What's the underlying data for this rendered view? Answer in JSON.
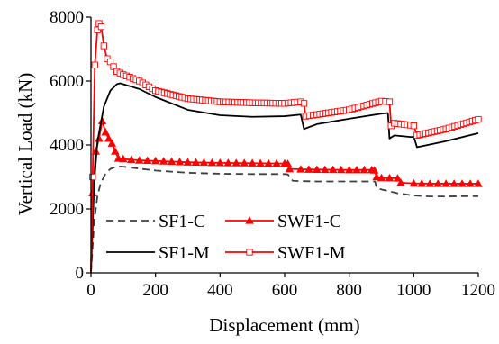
{
  "chart_data": {
    "type": "line",
    "title": "",
    "xlabel": "Displacement (mm)",
    "ylabel": "Vertical Load (kN)",
    "xlim": [
      0,
      1200
    ],
    "ylim": [
      0,
      8000
    ],
    "xticks": [
      0,
      200,
      400,
      600,
      800,
      1000,
      1200
    ],
    "yticks": [
      0,
      2000,
      4000,
      6000,
      8000
    ],
    "grid": false,
    "legend_position": "bottom-left",
    "series": [
      {
        "name": "SF1-C",
        "color": "#404040",
        "line_style": "dashed",
        "marker": "none",
        "x": [
          0,
          10,
          20,
          30,
          45,
          60,
          80,
          100,
          150,
          200,
          300,
          400,
          500,
          600,
          610,
          625,
          650,
          700,
          800,
          870,
          880,
          885,
          900,
          950,
          1000,
          1050,
          1100,
          1150,
          1200
        ],
        "y": [
          0,
          1600,
          2400,
          2800,
          3100,
          3250,
          3330,
          3320,
          3260,
          3200,
          3130,
          3100,
          3090,
          3090,
          3080,
          2880,
          2870,
          2860,
          2860,
          2860,
          2860,
          2660,
          2610,
          2490,
          2420,
          2390,
          2390,
          2400,
          2400
        ]
      },
      {
        "name": "SWF1-C",
        "color": "#ff0000",
        "line_style": "solid",
        "marker": "triangle",
        "x": [
          0,
          5,
          15,
          25,
          35,
          45,
          55,
          65,
          75,
          85,
          100,
          150,
          200,
          300,
          400,
          500,
          600,
          610,
          615,
          650,
          700,
          800,
          870,
          878,
          885,
          900,
          950,
          960,
          1000,
          1050,
          1100,
          1150,
          1200
        ],
        "y": [
          0,
          2500,
          3800,
          4200,
          4750,
          4400,
          4200,
          4050,
          3800,
          3580,
          3560,
          3520,
          3500,
          3460,
          3440,
          3430,
          3420,
          3410,
          3250,
          3240,
          3230,
          3220,
          3220,
          3210,
          3000,
          2970,
          2960,
          2820,
          2800,
          2790,
          2790,
          2790,
          2790
        ]
      },
      {
        "name": "SF1-M",
        "color": "#000000",
        "line_style": "solid",
        "marker": "none",
        "x": [
          0,
          10,
          20,
          40,
          60,
          80,
          90,
          100,
          150,
          200,
          300,
          400,
          500,
          600,
          650,
          660,
          700,
          800,
          900,
          920,
          925,
          940,
          990,
          1000,
          1005,
          1010,
          1100,
          1200
        ],
        "y": [
          0,
          2800,
          4100,
          5200,
          5700,
          5900,
          5930,
          5900,
          5750,
          5500,
          5100,
          4930,
          4880,
          4900,
          4950,
          4500,
          4650,
          4820,
          4980,
          5000,
          4200,
          4300,
          4250,
          4250,
          4100,
          3930,
          4120,
          4370
        ]
      },
      {
        "name": "SWF1-M",
        "color": "#ff0000",
        "line_style": "solid",
        "marker": "square",
        "x": [
          0,
          5,
          12,
          20,
          25,
          32,
          40,
          50,
          60,
          70,
          80,
          100,
          150,
          200,
          300,
          400,
          500,
          600,
          650,
          660,
          665,
          700,
          800,
          900,
          925,
          930,
          940,
          990,
          1000,
          1010,
          1100,
          1200
        ],
        "y": [
          0,
          3000,
          6500,
          7600,
          7800,
          7700,
          7100,
          6700,
          6600,
          6450,
          6300,
          6200,
          6000,
          5700,
          5450,
          5350,
          5320,
          5300,
          5350,
          5300,
          4900,
          4950,
          5100,
          5370,
          5350,
          4600,
          4680,
          4620,
          4600,
          4300,
          4500,
          4800
        ]
      }
    ]
  }
}
